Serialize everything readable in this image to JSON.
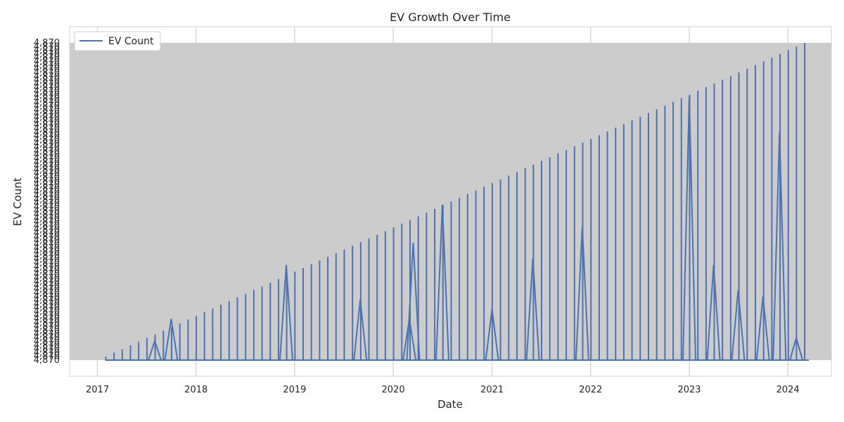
{
  "chart_data": {
    "type": "line",
    "title": "EV Growth Over Time",
    "xlabel": "Date",
    "ylabel": "EV Count",
    "x_range": [
      "2016-09-20",
      "2024-06-10"
    ],
    "x_ticks": [
      "2017",
      "2018",
      "2019",
      "2020",
      "2021",
      "2022",
      "2023",
      "2024"
    ],
    "y_tick_label_example": "4,870",
    "grid": true,
    "legend_position": "top-left",
    "colors": {
      "line": "#4c72b0",
      "overlap_fill": "#cccccc",
      "grid": "#d9d9d9",
      "axes_bg": "#ffffff",
      "spine": "#d0d0d0"
    },
    "series": [
      {
        "name": "EV Count",
        "start_date": "2017-02-01",
        "months": 86,
        "y_range_category_index": [
          0,
          86
        ],
        "spike_months_note": "values shown as monthly spikes with occasional mid-height points",
        "mid_points": [
          {
            "date": "2017-08-01",
            "rel": 0.06
          },
          {
            "date": "2017-10-01",
            "rel": 0.13
          },
          {
            "date": "2018-12-01",
            "rel": 0.3
          },
          {
            "date": "2020-03-01",
            "rel": 0.13
          },
          {
            "date": "2020-03-15",
            "rel": 0.37
          },
          {
            "date": "2020-07-01",
            "rel": 0.49
          },
          {
            "date": "2019-09-01",
            "rel": 0.19
          },
          {
            "date": "2021-01-01",
            "rel": 0.16
          },
          {
            "date": "2021-06-01",
            "rel": 0.32
          },
          {
            "date": "2021-12-01",
            "rel": 0.42
          },
          {
            "date": "2023-01-01",
            "rel": 0.83
          },
          {
            "date": "2023-04-01",
            "rel": 0.3
          },
          {
            "date": "2023-07-01",
            "rel": 0.22
          },
          {
            "date": "2023-10-01",
            "rel": 0.2
          },
          {
            "date": "2023-12-01",
            "rel": 0.72
          },
          {
            "date": "2024-02-01",
            "rel": 0.07
          }
        ]
      }
    ]
  }
}
